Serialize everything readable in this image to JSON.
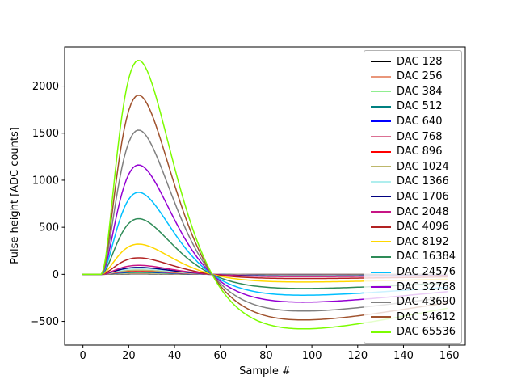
{
  "figure": {
    "background": "#ffffff",
    "frame_color": "#000000"
  },
  "chart_data": {
    "type": "line",
    "title": "",
    "xlabel": "Sample #",
    "ylabel": "Pulse height [ADC counts]",
    "x_ticks": [
      0,
      20,
      40,
      60,
      80,
      100,
      120,
      140,
      160
    ],
    "y_ticks": [
      -500,
      0,
      500,
      1000,
      1500,
      2000
    ],
    "xlim": [
      -8,
      167
    ],
    "ylim": [
      -753,
      2417
    ],
    "grid": false,
    "legend_position": "upper right",
    "samples": {
      "start": 0,
      "end": 159,
      "step": 1
    },
    "pulse_shape": {
      "baseline": 0,
      "t_start": 8,
      "t_peak": 25,
      "zero_crossing": 56,
      "t_undershoot_min": 88,
      "undershoot_ratio": -0.25,
      "rise_tau": 17,
      "undershoot_tau": 80
    },
    "series": [
      {
        "name": "DAC 128",
        "color": "#000000",
        "peak_adc": 6,
        "undershoot_adc": -2
      },
      {
        "name": "DAC 256",
        "color": "#e9967a",
        "peak_adc": 11,
        "undershoot_adc": -3
      },
      {
        "name": "DAC 384",
        "color": "#90ee90",
        "peak_adc": 17,
        "undershoot_adc": -4
      },
      {
        "name": "DAC 512",
        "color": "#008080",
        "peak_adc": 22,
        "undershoot_adc": -6
      },
      {
        "name": "DAC 640",
        "color": "#0000ff",
        "peak_adc": 28,
        "undershoot_adc": -7
      },
      {
        "name": "DAC 768",
        "color": "#db7093",
        "peak_adc": 33,
        "undershoot_adc": -8
      },
      {
        "name": "DAC 896",
        "color": "#ff0000",
        "peak_adc": 39,
        "undershoot_adc": -10
      },
      {
        "name": "DAC 1024",
        "color": "#bdb76b",
        "peak_adc": 44,
        "undershoot_adc": -11
      },
      {
        "name": "DAC 1366",
        "color": "#afeeee",
        "peak_adc": 59,
        "undershoot_adc": -15
      },
      {
        "name": "DAC 1706",
        "color": "#000080",
        "peak_adc": 73,
        "undershoot_adc": -18
      },
      {
        "name": "DAC 2048",
        "color": "#c71585",
        "peak_adc": 95,
        "undershoot_adc": -24
      },
      {
        "name": "DAC 4096",
        "color": "#b22222",
        "peak_adc": 175,
        "undershoot_adc": -44
      },
      {
        "name": "DAC 8192",
        "color": "#ffd700",
        "peak_adc": 320,
        "undershoot_adc": -80
      },
      {
        "name": "DAC 16384",
        "color": "#2e8b57",
        "peak_adc": 590,
        "undershoot_adc": -148
      },
      {
        "name": "DAC 24576",
        "color": "#00bfff",
        "peak_adc": 870,
        "undershoot_adc": -218
      },
      {
        "name": "DAC 32768",
        "color": "#9400d3",
        "peak_adc": 1160,
        "undershoot_adc": -290
      },
      {
        "name": "DAC 43690",
        "color": "#808080",
        "peak_adc": 1530,
        "undershoot_adc": -383
      },
      {
        "name": "DAC 54612",
        "color": "#a0522d",
        "peak_adc": 1900,
        "undershoot_adc": -475
      },
      {
        "name": "DAC 65536",
        "color": "#7cfc00",
        "peak_adc": 2270,
        "undershoot_adc": -568
      }
    ]
  }
}
